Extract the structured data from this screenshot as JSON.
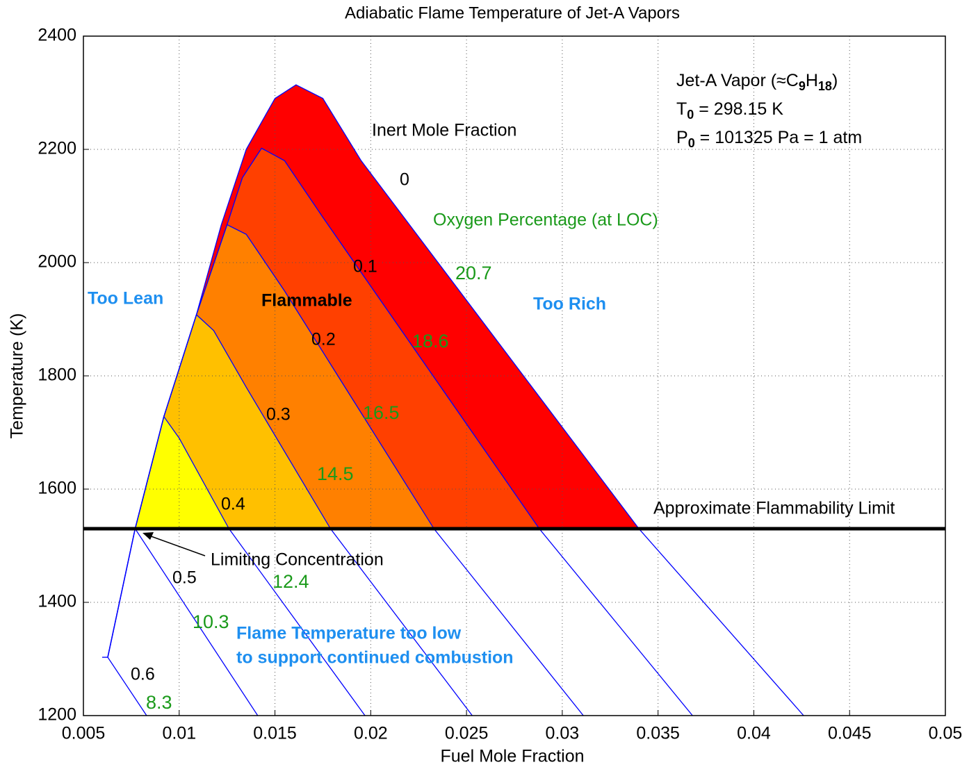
{
  "chart_data": {
    "type": "line",
    "title": "Adiabatic Flame Temperature of Jet-A Vapors",
    "x_label": "Fuel Mole Fraction",
    "y_label": "Temperature (K)",
    "xlim": [
      0.005,
      0.05
    ],
    "xticks": [
      0.005,
      0.01,
      0.015,
      0.02,
      0.025,
      0.03,
      0.035,
      0.04,
      0.045,
      0.05
    ],
    "ylim": [
      1200,
      2400
    ],
    "yticks": [
      1200,
      1400,
      1600,
      1800,
      2000,
      2200,
      2400
    ],
    "grid": true,
    "series": [
      {
        "name": "0",
        "oxygen": 20.7,
        "color": "#0000ff",
        "fill_color": "#ff0000",
        "x": [
          0.00627,
          0.0077,
          0.0092,
          0.0109,
          0.0122,
          0.0135,
          0.015,
          0.0161,
          0.0175,
          0.0195,
          0.034,
          0.0426
        ],
        "y": [
          1303,
          1530,
          1728,
          1908,
          2067,
          2200,
          2290,
          2314,
          2290,
          2180,
          1530,
          1200
        ]
      },
      {
        "name": "0.1",
        "oxygen": 18.6,
        "color": "#0000ff",
        "fill_color": "#ff4000",
        "x": [
          0.00627,
          0.0077,
          0.0092,
          0.0109,
          0.0125,
          0.0133,
          0.0143,
          0.0155,
          0.0175,
          0.0288,
          0.0368
        ],
        "y": [
          1303,
          1530,
          1728,
          1908,
          2067,
          2150,
          2202,
          2180,
          2080,
          1530,
          1200
        ]
      },
      {
        "name": "0.2",
        "oxygen": 16.5,
        "color": "#0000ff",
        "fill_color": "#ff8000",
        "x": [
          0.00627,
          0.0077,
          0.0092,
          0.0109,
          0.0125,
          0.0135,
          0.0155,
          0.0233,
          0.0311
        ],
        "y": [
          1303,
          1530,
          1728,
          1908,
          2067,
          2050,
          1950,
          1530,
          1200
        ]
      },
      {
        "name": "0.3",
        "oxygen": 14.5,
        "color": "#0000ff",
        "fill_color": "#ffc000",
        "x": [
          0.00627,
          0.0077,
          0.0092,
          0.0109,
          0.0118,
          0.0135,
          0.0179,
          0.0253
        ],
        "y": [
          1303,
          1530,
          1728,
          1908,
          1880,
          1780,
          1530,
          1200
        ]
      },
      {
        "name": "0.4",
        "oxygen": 12.4,
        "color": "#0000ff",
        "fill_color": "#ffff00",
        "x": [
          0.00627,
          0.0077,
          0.0092,
          0.01,
          0.0126,
          0.0197
        ],
        "y": [
          1303,
          1530,
          1728,
          1690,
          1530,
          1200
        ]
      },
      {
        "name": "0.5",
        "oxygen": 10.3,
        "color": "#0000ff",
        "x": [
          0.0077,
          0.0141
        ],
        "y": [
          1530,
          1200
        ]
      },
      {
        "name": "0.6",
        "oxygen": 8.3,
        "color": "#0000ff",
        "x": [
          0.00598,
          0.00627,
          0.0083
        ],
        "y": [
          1303,
          1303,
          1200
        ]
      }
    ],
    "flammability_limit": 1530,
    "limit_label": "Approximate Flammability Limit",
    "annotations": {
      "inert": "Inert Mole Fraction",
      "oxygen": "Oxygen Percentage (at LOC)",
      "lean": "Too Lean",
      "flammable": "Flammable",
      "rich": "Too Rich",
      "limiting": "Limiting Concentration",
      "low1": "Flame Temperature too low",
      "low2": "to support continued combustion"
    },
    "info_lines": [
      [
        "Jet-A Vapor (≈C",
        "9",
        "H",
        "18",
        ")"
      ],
      [
        "T",
        "0",
        " = 298.15 K"
      ],
      [
        "P",
        "0",
        " = 101325 Pa  = 1 atm"
      ]
    ]
  }
}
